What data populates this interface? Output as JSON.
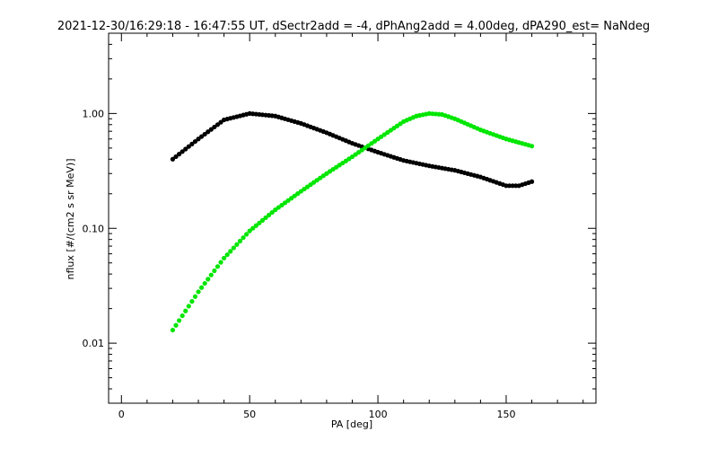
{
  "chart_data": {
    "type": "scatter",
    "title": "2021-12-30/16:29:18 - 16:47:55 UT, dSectr2add = -4, dPhAng2add = 4.00deg, dPA290_est=   NaNdeg",
    "xlabel": "PA [deg]",
    "ylabel": "nflux [#/(cm2 s sr MeV)]",
    "xlim": [
      -5,
      185
    ],
    "ylim": [
      0.003,
      5.0
    ],
    "yscale": "log",
    "grid": false,
    "x_ticks": [
      {
        "value": 0,
        "label": "0"
      },
      {
        "value": 50,
        "label": "50"
      },
      {
        "value": 100,
        "label": "100"
      },
      {
        "value": 150,
        "label": "150"
      }
    ],
    "y_ticks": [
      {
        "value": 0.01,
        "label": "0.01"
      },
      {
        "value": 0.1,
        "label": "0.10"
      },
      {
        "value": 1.0,
        "label": "1.00"
      }
    ],
    "series": [
      {
        "color": "#000000",
        "x": [
          20,
          30,
          40,
          50,
          60,
          70,
          80,
          90,
          100,
          110,
          120,
          130,
          140,
          150,
          155,
          160
        ],
        "y": [
          0.4,
          0.6,
          0.88,
          1.0,
          0.95,
          0.82,
          0.68,
          0.55,
          0.46,
          0.39,
          0.35,
          0.32,
          0.28,
          0.235,
          0.235,
          0.255
        ]
      },
      {
        "color": "#00e600",
        "x": [
          20,
          30,
          40,
          50,
          60,
          70,
          80,
          90,
          100,
          110,
          115,
          120,
          125,
          130,
          140,
          150,
          160
        ],
        "y": [
          0.013,
          0.028,
          0.055,
          0.095,
          0.145,
          0.21,
          0.3,
          0.42,
          0.6,
          0.85,
          0.95,
          1.0,
          0.98,
          0.9,
          0.72,
          0.6,
          0.52
        ]
      }
    ]
  }
}
